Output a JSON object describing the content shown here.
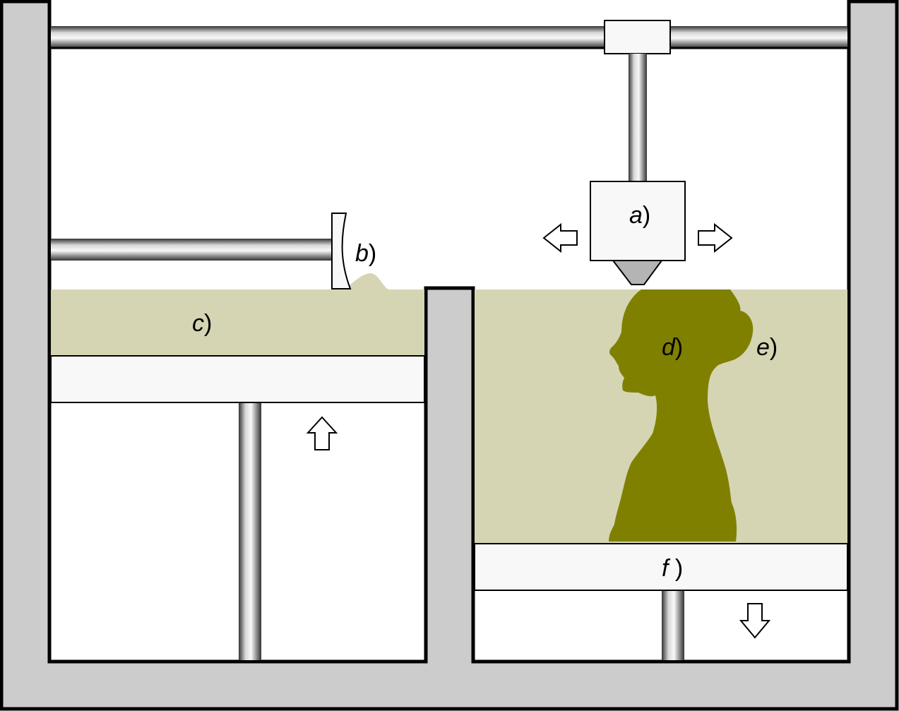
{
  "labels": {
    "a_letter": "a",
    "a_paren": ")",
    "b_letter": "b",
    "b_paren": ")",
    "c_letter": "c",
    "c_paren": ")",
    "d_letter": "d",
    "d_paren": ")",
    "e_letter": "e",
    "e_paren": ")",
    "f_letter": "f",
    "f_paren": " )"
  },
  "colors": {
    "housing": "#cccccc",
    "powder": "#d5d5b4",
    "printed_part": "#808000",
    "platform": "#f8f8f8",
    "outline": "#000000",
    "nozzle": "#b4b4b4"
  },
  "icons": {
    "head_move_left": "arrow-left-icon",
    "head_move_right": "arrow-right-icon",
    "feed_piston_up": "arrow-up-icon",
    "build_piston_down": "arrow-down-icon"
  }
}
